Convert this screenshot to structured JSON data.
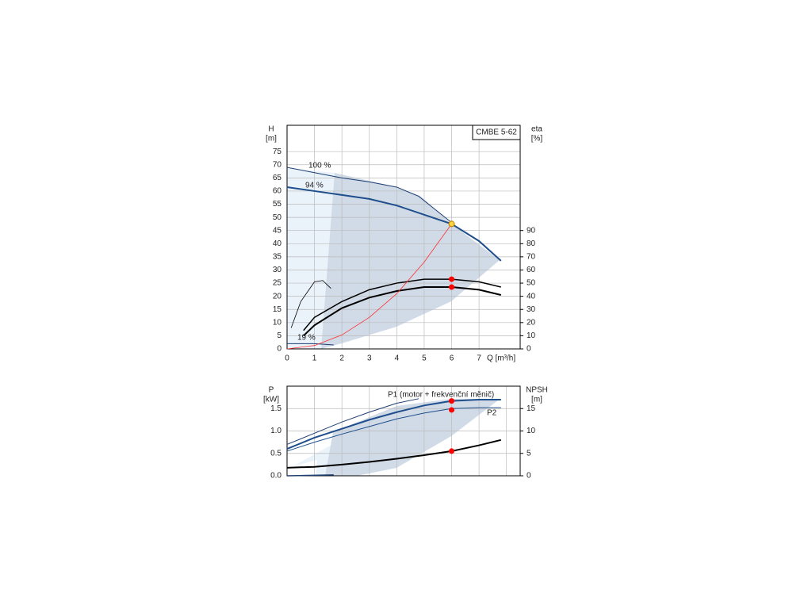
{
  "chart_data": [
    {
      "type": "line",
      "title": "CMBE 5-62",
      "ylabel": [
        "H",
        "[m]"
      ],
      "y2label": [
        "eta",
        "[%]"
      ],
      "xlabel": "Q [m³/h]",
      "xlim": [
        0,
        8.5
      ],
      "xticks": [
        0,
        1,
        2,
        3,
        4,
        5,
        6,
        7
      ],
      "show_xtick_labels": true,
      "ylim": [
        0,
        85
      ],
      "yticks": [
        0,
        5,
        10,
        15,
        20,
        25,
        30,
        35,
        40,
        45,
        50,
        55,
        60,
        65,
        70,
        75
      ],
      "y2lim": [
        0,
        170
      ],
      "y2ticks": [
        0,
        10,
        20,
        30,
        40,
        50,
        60,
        70,
        80,
        90
      ],
      "grid": true,
      "series": [
        {
          "color": "#1f3f73",
          "width": 1,
          "x": [
            0,
            1,
            2,
            3,
            4,
            4.8,
            6
          ],
          "values": [
            69,
            67,
            65,
            63.5,
            61.5,
            58,
            48
          ]
        },
        {
          "color": "#1f4e8c",
          "width": 2,
          "x": [
            0,
            1,
            2,
            3,
            4,
            5,
            6,
            7,
            7.8
          ],
          "values": [
            61.5,
            60,
            58.5,
            57,
            54.5,
            51,
            47.5,
            41,
            33.5
          ]
        },
        {
          "color": "#1f3f73",
          "width": 1,
          "x": [
            0,
            1,
            1.7
          ],
          "values": [
            2,
            2,
            1.5
          ]
        },
        {
          "color": "#000000",
          "width": 1.5,
          "axis": "y2",
          "x": [
            0.6,
            1,
            2,
            3,
            4,
            5,
            6,
            7,
            7.8
          ],
          "values": [
            14,
            24,
            36,
            45,
            50,
            53,
            53,
            51,
            47
          ]
        },
        {
          "color": "#000000",
          "width": 2,
          "axis": "y2",
          "x": [
            0.6,
            1,
            2,
            3,
            4,
            5,
            6,
            7,
            7.8
          ],
          "values": [
            10,
            18,
            31,
            39,
            44,
            47,
            47,
            45,
            41
          ]
        },
        {
          "color": "#000000",
          "width": 0.8,
          "axis": "y2",
          "x": [
            0.15,
            0.5,
            1,
            1.3,
            1.6
          ],
          "values": [
            16,
            36,
            51,
            52,
            46
          ]
        },
        {
          "color": "#ff3030",
          "width": 0.8,
          "x": [
            0,
            1,
            2,
            3,
            4,
            5,
            6
          ],
          "values": [
            0,
            1.3,
            5.3,
            12,
            21,
            33,
            47.5
          ]
        }
      ],
      "points": [
        {
          "x": 6,
          "y": 47.5,
          "color": "#ffd23f"
        },
        {
          "x": 6,
          "y": 53,
          "axis": "y2",
          "color": "#ff0000"
        },
        {
          "x": 6,
          "y": 47,
          "axis": "y2",
          "color": "#ff0000"
        }
      ],
      "annotations": [
        "100 %",
        "94 %",
        "19 %"
      ]
    },
    {
      "type": "line",
      "ylabel": [
        "P",
        "[kW]"
      ],
      "y2label": [
        "NPSH",
        "[m]"
      ],
      "xlim": [
        0,
        8.5
      ],
      "xticks": [
        0,
        1,
        2,
        3,
        4,
        5,
        6,
        7,
        8
      ],
      "show_xtick_labels": false,
      "ylim": [
        0,
        2.0
      ],
      "yticks": [
        {
          "value": 0,
          "label": "0.0"
        },
        0.5,
        {
          "value": 1,
          "label": "1.0"
        },
        1.5
      ],
      "y2lim": [
        0,
        20
      ],
      "y2ticks": [
        0,
        5,
        10,
        15
      ],
      "grid": true,
      "series": [
        {
          "color": "#1f4e8c",
          "width": 2,
          "x": [
            0,
            1,
            2,
            3,
            4,
            5,
            6,
            7,
            7.8
          ],
          "values": [
            0.6,
            0.85,
            1.05,
            1.25,
            1.42,
            1.57,
            1.67,
            1.7,
            1.7
          ]
        },
        {
          "color": "#1f4e8c",
          "width": 1,
          "x": [
            0,
            1,
            2,
            3,
            4,
            5,
            6,
            7,
            7.8
          ],
          "values": [
            0.55,
            0.75,
            0.93,
            1.1,
            1.27,
            1.4,
            1.5,
            1.52,
            1.52
          ]
        },
        {
          "color": "#1f3f73",
          "width": 1,
          "x": [
            0,
            1,
            2,
            3,
            4,
            4.8
          ],
          "values": [
            0.7,
            0.95,
            1.2,
            1.42,
            1.62,
            1.72
          ]
        },
        {
          "color": "#1f3f73",
          "width": 1.5,
          "x": [
            0,
            1.7
          ],
          "values": [
            0,
            0.02
          ]
        },
        {
          "color": "#000000",
          "width": 2,
          "axis": "y2",
          "x": [
            0,
            1,
            2,
            3,
            4,
            5,
            6,
            7,
            7.8
          ],
          "values": [
            1.8,
            2,
            2.5,
            3.1,
            3.8,
            4.6,
            5.5,
            6.8,
            8
          ]
        }
      ],
      "points": [
        {
          "x": 6,
          "y": 1.67,
          "color": "#ff0000"
        },
        {
          "x": 6,
          "y": 1.47,
          "color": "#ff0000"
        },
        {
          "x": 6,
          "y": 5.5,
          "axis": "y2",
          "color": "#ff0000"
        }
      ],
      "annotations": [
        "P1 (motor + frekvenční měnič)",
        "P2"
      ]
    }
  ]
}
